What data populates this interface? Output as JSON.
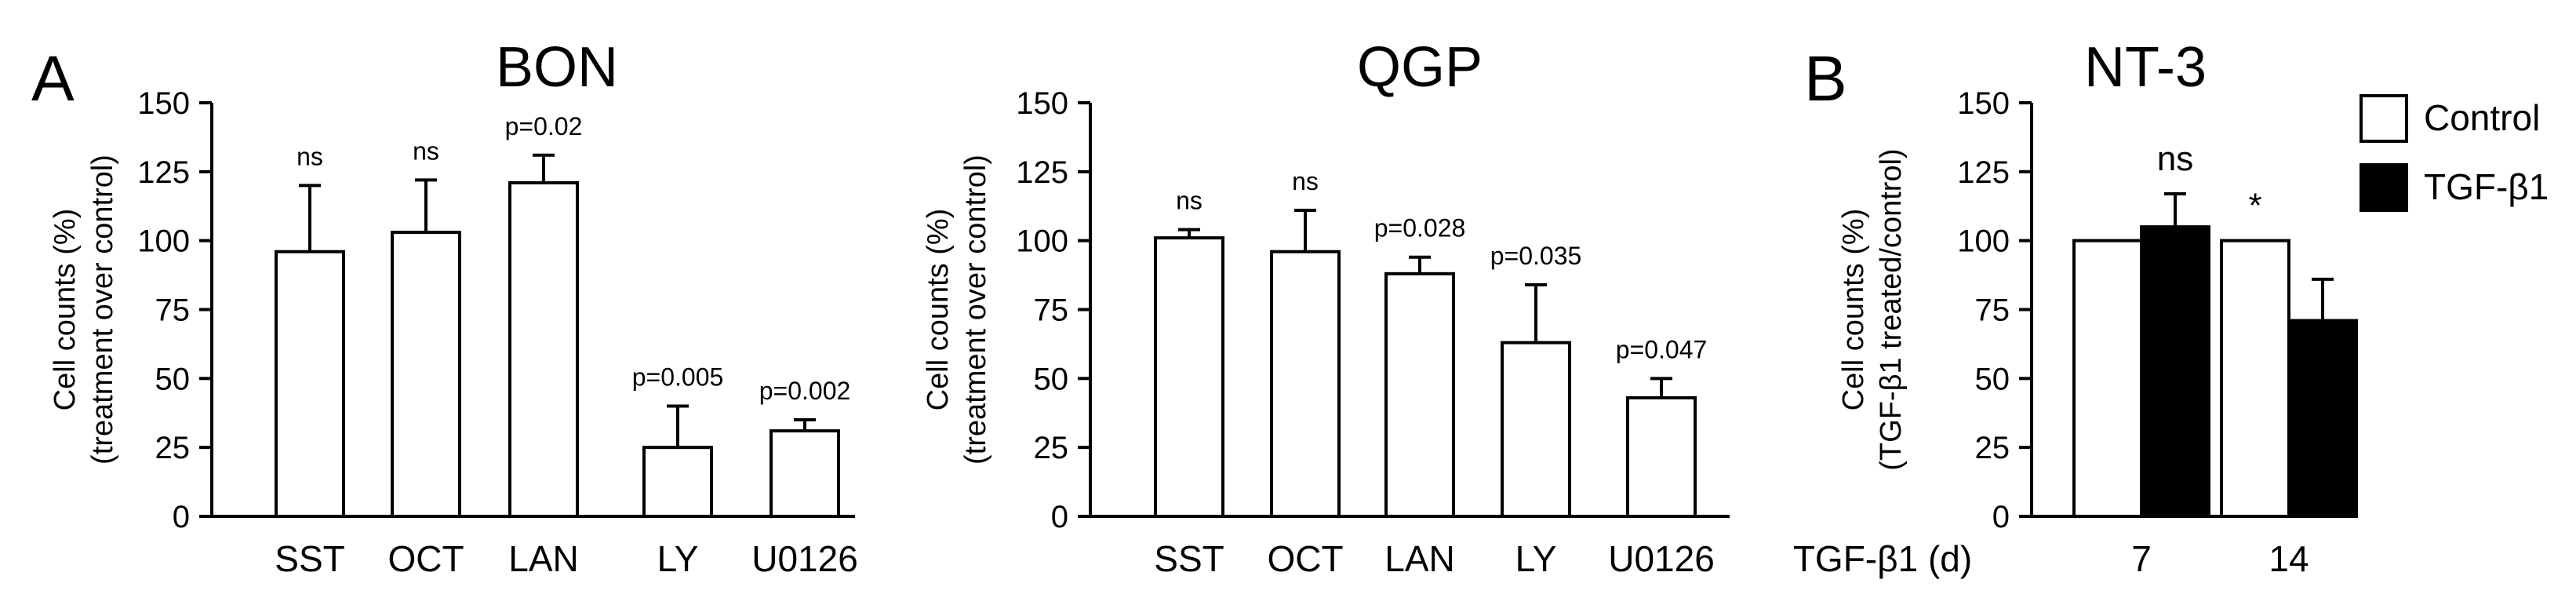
{
  "figure": {
    "panel_letters": [
      "A",
      "B"
    ]
  },
  "chart_data": [
    {
      "type": "bar",
      "title": "BON",
      "ylabel": "Cell counts (%)",
      "ylabel2": "(treatment over control)",
      "ylim": [
        0,
        150
      ],
      "yticks": [
        0,
        25,
        50,
        75,
        100,
        125,
        150
      ],
      "categories": [
        "SST",
        "OCT",
        "LAN",
        "LY",
        "U0126"
      ],
      "series": [
        {
          "values": [
            96,
            103,
            121,
            25,
            31
          ],
          "errors": [
            24,
            19,
            10,
            15,
            4
          ],
          "fill": "#ffffff"
        }
      ],
      "annotations": [
        "ns",
        "ns",
        "p=0.02",
        "p=0.005",
        "p=0.002"
      ]
    },
    {
      "type": "bar",
      "title": "QGP",
      "ylabel": "Cell counts (%)",
      "ylabel2": "(treatment over control)",
      "ylim": [
        0,
        150
      ],
      "yticks": [
        0,
        25,
        50,
        75,
        100,
        125,
        150
      ],
      "categories": [
        "SST",
        "OCT",
        "LAN",
        "LY",
        "U0126"
      ],
      "series": [
        {
          "values": [
            101,
            96,
            88,
            63,
            43
          ],
          "errors": [
            3,
            15,
            6,
            21,
            7
          ],
          "fill": "#ffffff"
        }
      ],
      "annotations": [
        "ns",
        "ns",
        "p=0.028",
        "p=0.035",
        "p=0.047"
      ]
    },
    {
      "type": "bar",
      "title": "NT-3",
      "ylabel": "Cell counts (%)",
      "ylabel2": "(TGF-β1 treated/control)",
      "ylim": [
        0,
        150
      ],
      "yticks": [
        0,
        25,
        50,
        75,
        100,
        125,
        150
      ],
      "xlabel": "TGF-β1 (d)",
      "categories": [
        "7",
        "14"
      ],
      "series": [
        {
          "name": "Control",
          "values": [
            100,
            100
          ],
          "errors": [
            0,
            0
          ],
          "fill": "#ffffff"
        },
        {
          "name": "TGF-β1",
          "values": [
            105,
            71
          ],
          "errors": [
            12,
            15
          ],
          "fill": "#000000"
        }
      ],
      "annotations": [
        "ns",
        "*"
      ],
      "legend": "top-right"
    }
  ]
}
